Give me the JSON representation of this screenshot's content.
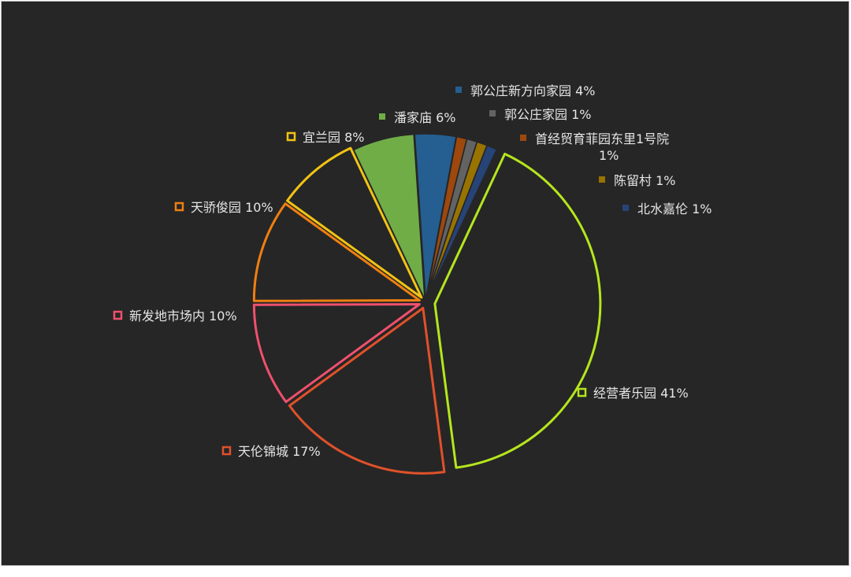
{
  "chart_data": {
    "type": "pie",
    "style": "exploded-outline",
    "slices": [
      {
        "label": "经营者乐园",
        "pct_label": "41%",
        "value": 41,
        "color": "#b5e61d",
        "filled": false
      },
      {
        "label": "天伦锦城",
        "pct_label": "17%",
        "value": 17,
        "color": "#e0512b",
        "filled": false
      },
      {
        "label": "新发地市场内",
        "pct_label": "10%",
        "value": 10,
        "color": "#f0506e",
        "filled": false
      },
      {
        "label": "天骄俊园",
        "pct_label": "10%",
        "value": 10,
        "color": "#f07f11",
        "filled": false
      },
      {
        "label": "宜兰园",
        "pct_label": "8%",
        "value": 8,
        "color": "#f2c314",
        "filled": false
      },
      {
        "label": "潘家庙",
        "pct_label": "6%",
        "value": 6,
        "color": "#70ad47",
        "filled": true
      },
      {
        "label": "郭公庄新方向家园",
        "pct_label": "4%",
        "value": 4,
        "color": "#255e91",
        "filled": true
      },
      {
        "label": "首经贸育菲园东里1号院",
        "pct_label": "1%",
        "value": 1,
        "color": "#9e480e",
        "filled": true
      },
      {
        "label": "郭公庄家园",
        "pct_label": "1%",
        "value": 1,
        "color": "#636363",
        "filled": true
      },
      {
        "label": "陈留村",
        "pct_label": "1%",
        "value": 1,
        "color": "#997300",
        "filled": true
      },
      {
        "label": "北水嘉伦",
        "pct_label": "1%",
        "value": 1,
        "color": "#264478",
        "filled": true
      }
    ]
  }
}
